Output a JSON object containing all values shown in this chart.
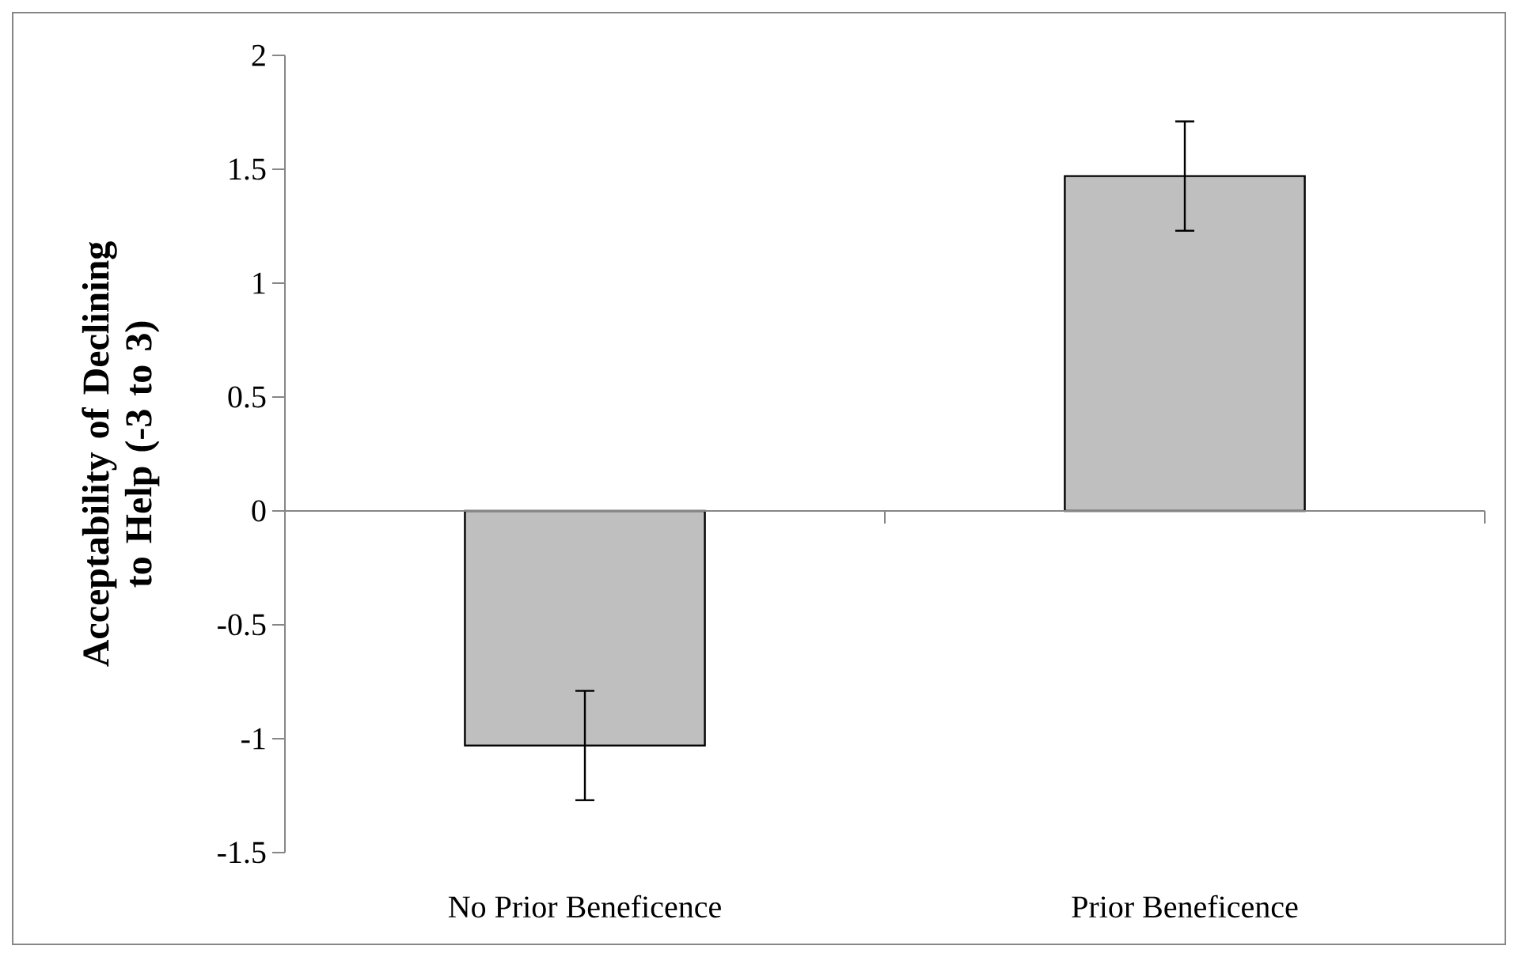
{
  "chart_data": {
    "type": "bar",
    "categories": [
      "No Prior Beneficence",
      "Prior Beneficence"
    ],
    "values": [
      -1.03,
      1.47
    ],
    "errors": [
      0.24,
      0.24
    ],
    "color": "#bfbfbf",
    "ylabel": "Acceptability of Declining to Help (-3 to 3)",
    "ylim": [
      -1.5,
      2
    ],
    "yticks": [
      -1.5,
      -1,
      -0.5,
      0,
      0.5,
      1,
      1.5,
      2
    ]
  }
}
